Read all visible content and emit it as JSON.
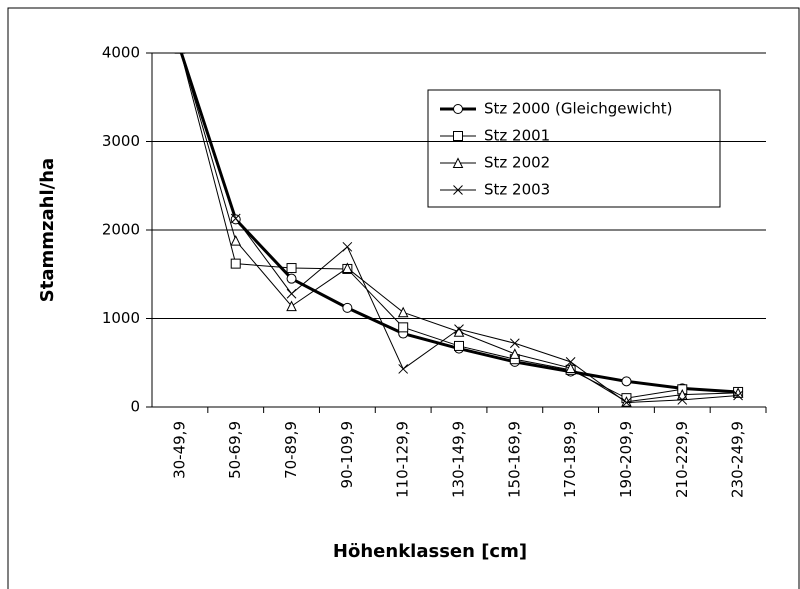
{
  "chart_data": {
    "type": "line",
    "x_label": "Höhenklassen [cm]",
    "y_label": "Stammzahl/ha",
    "categories": [
      "30-49,9",
      "50-69,9",
      "70-89,9",
      "90-109,9",
      "110-129,9",
      "130-149,9",
      "150-169,9",
      "170-189,9",
      "190-209,9",
      "210-229,9",
      "230-249,9"
    ],
    "series": [
      {
        "name": "Stz 2000 (Gleichgewicht)",
        "color": "#000000",
        "marker": "circle",
        "line_width": 3,
        "values": [
          4050,
          2120,
          1450,
          1120,
          830,
          660,
          510,
          400,
          290,
          210,
          170
        ]
      },
      {
        "name": "Stz 2001",
        "color": "#000000",
        "marker": "square",
        "line_width": 1,
        "values": [
          4050,
          1620,
          1570,
          1560,
          900,
          690,
          540,
          420,
          100,
          200,
          170
        ]
      },
      {
        "name": "Stz 2002",
        "color": "#000000",
        "marker": "triangle",
        "line_width": 1,
        "values": [
          4050,
          1880,
          1140,
          1570,
          1070,
          850,
          600,
          440,
          60,
          140,
          160
        ]
      },
      {
        "name": "Stz 2003",
        "color": "#000000",
        "marker": "x",
        "line_width": 1,
        "values": [
          4050,
          2130,
          1280,
          1810,
          430,
          880,
          720,
          510,
          50,
          80,
          130
        ]
      }
    ],
    "ylim": [
      0,
      4000
    ],
    "yticks": [
      0,
      1000,
      2000,
      3000,
      4000
    ],
    "grid": true
  }
}
